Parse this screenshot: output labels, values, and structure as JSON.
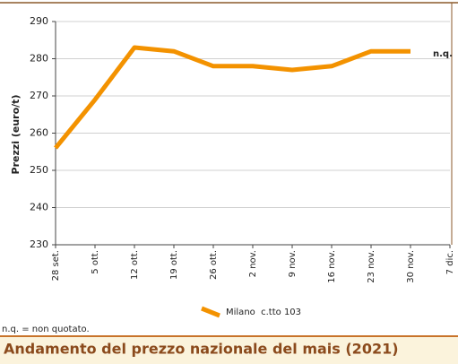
{
  "chart_data": {
    "type": "line",
    "title": "Andamento del prezzo nazionale del mais (2021)",
    "y_label": "Prezzi (euro/t)",
    "annotation": "n.q.",
    "footnote": "n.q. = non quotato.",
    "categories": [
      "28 set.",
      "5 ott.",
      "12 ott.",
      "19 ott.",
      "26 ott.",
      "2 nov.",
      "9 nov.",
      "16 nov.",
      "23 nov.",
      "30 nov.",
      "7 dic."
    ],
    "series": [
      {
        "name": "Milano  c.tto 103",
        "color": "#f39200",
        "values": [
          256,
          269,
          283,
          282,
          278,
          278,
          277,
          278,
          282,
          282,
          null
        ]
      }
    ],
    "ylim": [
      230,
      290
    ],
    "yticks": [
      230,
      240,
      250,
      260,
      270,
      280,
      290
    ],
    "grid": true
  }
}
